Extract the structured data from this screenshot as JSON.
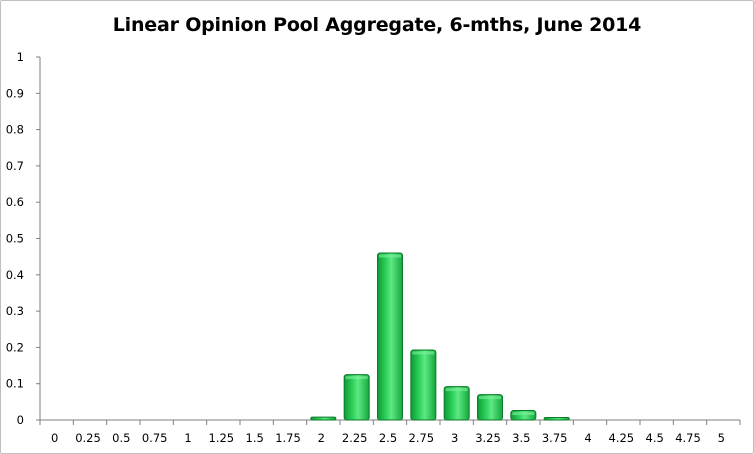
{
  "chart_data": {
    "type": "bar",
    "title": "Linear Opinion Pool Aggregate, 6-mths, June 2014",
    "xlabel": "",
    "ylabel": "",
    "categories": [
      "0",
      "0.25",
      "0.5",
      "0.75",
      "1",
      "1.25",
      "1.5",
      "1.75",
      "2",
      "2.25",
      "2.5",
      "2.75",
      "3",
      "3.25",
      "3.5",
      "3.75",
      "4",
      "4.25",
      "4.5",
      "4.75",
      "5"
    ],
    "values": [
      0,
      0,
      0,
      0,
      0,
      0,
      0,
      0,
      0.008,
      0.125,
      0.46,
      0.193,
      0.092,
      0.07,
      0.026,
      0.007,
      0,
      0,
      0,
      0,
      0
    ],
    "ylim": [
      0,
      1
    ],
    "yticks": [
      "0",
      "0.1",
      "0.2",
      "0.3",
      "0.4",
      "0.5",
      "0.6",
      "0.7",
      "0.8",
      "0.9",
      "1"
    ],
    "grid": false,
    "legend": "none",
    "colors": {
      "bar_fill": "#1fbf4a",
      "bar_highlight": "#7ff09c",
      "bar_stroke": "#0b7a2a",
      "axis": "#7f7f7f"
    }
  }
}
